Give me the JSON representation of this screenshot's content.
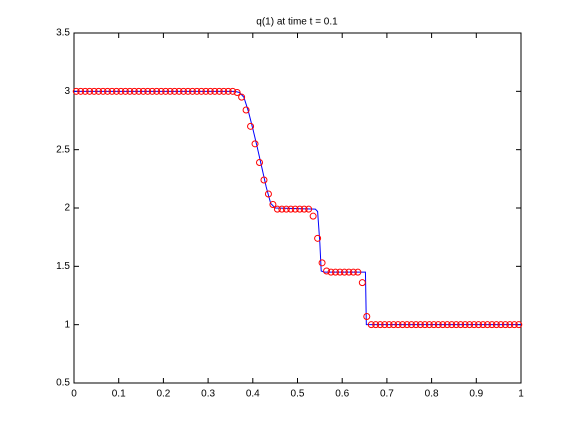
{
  "chart_data": {
    "type": "line",
    "title": "q(1)   at time t = 0.1",
    "xlim": [
      0,
      1
    ],
    "xticks": [
      0,
      0.1,
      0.2,
      0.3,
      0.4,
      0.5,
      0.6,
      0.7,
      0.8,
      0.9,
      1
    ],
    "ylim": [
      0.5,
      3.5
    ],
    "yticks": [
      0.5,
      1,
      1.5,
      2,
      2.5,
      3,
      3.5
    ],
    "series": [
      {
        "style": "line",
        "color": "#0000ff",
        "x": [
          0,
          0.36,
          0.37,
          0.38,
          0.39,
          0.4,
          0.41,
          0.42,
          0.43,
          0.44,
          0.45,
          0.54,
          0.545,
          0.55,
          0.553,
          0.56,
          0.652,
          0.654,
          1
        ],
        "values": [
          3,
          3,
          2.99,
          2.95,
          2.83,
          2.68,
          2.52,
          2.35,
          2.18,
          2.04,
          2.0,
          1.99,
          1.97,
          1.7,
          1.46,
          1.45,
          1.45,
          1.0,
          1
        ]
      },
      {
        "style": "circle",
        "color": "#ff0000",
        "x": [
          0.005,
          0.015,
          0.025,
          0.035,
          0.045,
          0.055,
          0.065,
          0.075,
          0.085,
          0.095,
          0.105,
          0.115,
          0.125,
          0.135,
          0.145,
          0.155,
          0.165,
          0.175,
          0.185,
          0.195,
          0.205,
          0.215,
          0.225,
          0.235,
          0.245,
          0.255,
          0.265,
          0.275,
          0.285,
          0.295,
          0.305,
          0.315,
          0.325,
          0.335,
          0.345,
          0.355,
          0.365,
          0.375,
          0.385,
          0.395,
          0.405,
          0.415,
          0.425,
          0.435,
          0.445,
          0.455,
          0.465,
          0.475,
          0.485,
          0.495,
          0.505,
          0.515,
          0.525,
          0.535,
          0.545,
          0.555,
          0.565,
          0.575,
          0.585,
          0.595,
          0.605,
          0.615,
          0.625,
          0.635,
          0.645,
          0.655,
          0.665,
          0.675,
          0.685,
          0.695,
          0.705,
          0.715,
          0.725,
          0.735,
          0.745,
          0.755,
          0.765,
          0.775,
          0.785,
          0.795,
          0.805,
          0.815,
          0.825,
          0.835,
          0.845,
          0.855,
          0.865,
          0.875,
          0.885,
          0.895,
          0.905,
          0.915,
          0.925,
          0.935,
          0.945,
          0.955,
          0.965,
          0.975,
          0.985,
          0.995
        ],
        "values": [
          3,
          3,
          3,
          3,
          3,
          3,
          3,
          3,
          3,
          3,
          3,
          3,
          3,
          3,
          3,
          3,
          3,
          3,
          3,
          3,
          3,
          3,
          3,
          3,
          3,
          3,
          3,
          3,
          3,
          3,
          3,
          3,
          3,
          3,
          3,
          3,
          2.99,
          2.95,
          2.84,
          2.7,
          2.55,
          2.39,
          2.24,
          2.12,
          2.03,
          1.99,
          1.99,
          1.99,
          1.99,
          1.99,
          1.99,
          1.99,
          1.99,
          1.93,
          1.74,
          1.53,
          1.46,
          1.45,
          1.45,
          1.45,
          1.45,
          1.45,
          1.45,
          1.45,
          1.36,
          1.07,
          1,
          1,
          1,
          1,
          1,
          1,
          1,
          1,
          1,
          1,
          1,
          1,
          1,
          1,
          1,
          1,
          1,
          1,
          1,
          1,
          1,
          1,
          1,
          1,
          1,
          1,
          1,
          1,
          1,
          1,
          1,
          1,
          1,
          1
        ]
      }
    ]
  }
}
